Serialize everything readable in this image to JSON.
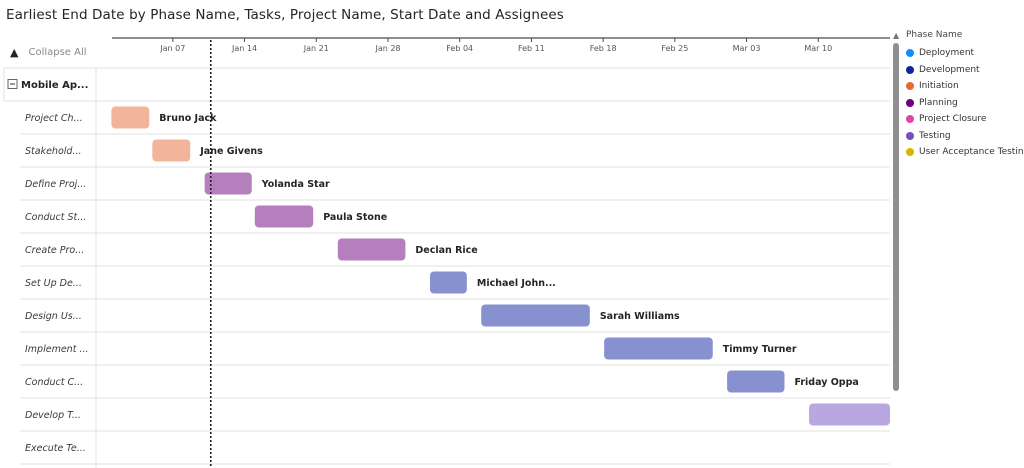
{
  "title": "Earliest End Date by Phase Name, Tasks, Project Name, Start Date and Assignees",
  "controls": {
    "collapse_label": "Collapse All"
  },
  "legend": {
    "title": "Phase Name",
    "items": [
      {
        "name": "Deployment",
        "color": "#118DFF"
      },
      {
        "name": "Development",
        "color": "#12239E"
      },
      {
        "name": "Initiation",
        "color": "#E66C37"
      },
      {
        "name": "Planning",
        "color": "#6B007B"
      },
      {
        "name": "Project Closure",
        "color": "#E044A7"
      },
      {
        "name": "Testing",
        "color": "#744EC2"
      },
      {
        "name": "User Acceptance Testing",
        "color": "#D9B300"
      }
    ]
  },
  "chart_data": {
    "type": "gantt",
    "title": "Earliest End Date by Phase Name, Tasks, Project Name, Start Date and Assignees",
    "x_axis": {
      "ticks": [
        "Jan 07",
        "Jan 14",
        "Jan 21",
        "Jan 28",
        "Feb 04",
        "Feb 11",
        "Feb 18",
        "Feb 25",
        "Mar 03",
        "Mar 10"
      ],
      "tick_days": [
        7,
        14,
        21,
        28,
        35,
        42,
        49,
        56,
        63,
        70
      ],
      "range_days": [
        -0.5,
        77
      ],
      "today_marker_day": 10.7
    },
    "group": {
      "label": "Mobile Ap..."
    },
    "rows": [
      {
        "task": "Project Ch...",
        "assignee": "Bruno Jack",
        "start_day": 1,
        "end_day": 4.7,
        "phase": "Initiation",
        "color": "#F2B49B"
      },
      {
        "task": "Stakehold...",
        "assignee": "Jane Givens",
        "start_day": 5,
        "end_day": 8.7,
        "phase": "Initiation",
        "color": "#F2B49B"
      },
      {
        "task": "Define Proj...",
        "assignee": "Yolanda Star",
        "start_day": 10.1,
        "end_day": 14.7,
        "phase": "Planning",
        "color": "#B57FBE"
      },
      {
        "task": "Conduct St...",
        "assignee": "Paula Stone",
        "start_day": 15,
        "end_day": 20.7,
        "phase": "Planning",
        "color": "#B57FBE"
      },
      {
        "task": "Create Pro...",
        "assignee": "Declan Rice",
        "start_day": 23.1,
        "end_day": 29.7,
        "phase": "Planning",
        "color": "#B57FBE"
      },
      {
        "task": "Set Up De...",
        "assignee": "Michael John...",
        "start_day": 32.1,
        "end_day": 35.7,
        "phase": "Development",
        "color": "#8891D0"
      },
      {
        "task": "Design Us...",
        "assignee": "Sarah Williams",
        "start_day": 37.1,
        "end_day": 47.7,
        "phase": "Development",
        "color": "#8891D0"
      },
      {
        "task": "Implement ...",
        "assignee": "Timmy Turner",
        "start_day": 49.1,
        "end_day": 59.7,
        "phase": "Development",
        "color": "#8891D0"
      },
      {
        "task": "Conduct C...",
        "assignee": "Friday Oppa",
        "start_day": 61.1,
        "end_day": 66.7,
        "phase": "Development",
        "color": "#8891D0"
      },
      {
        "task": "Develop T...",
        "assignee": "",
        "start_day": 69.1,
        "end_day": 77,
        "phase": "Testing",
        "color": "#B9A7E0"
      },
      {
        "task": "Execute Te...",
        "assignee": "",
        "start_day": null,
        "end_day": null,
        "phase": "Testing",
        "color": "#B9A7E0"
      }
    ]
  }
}
